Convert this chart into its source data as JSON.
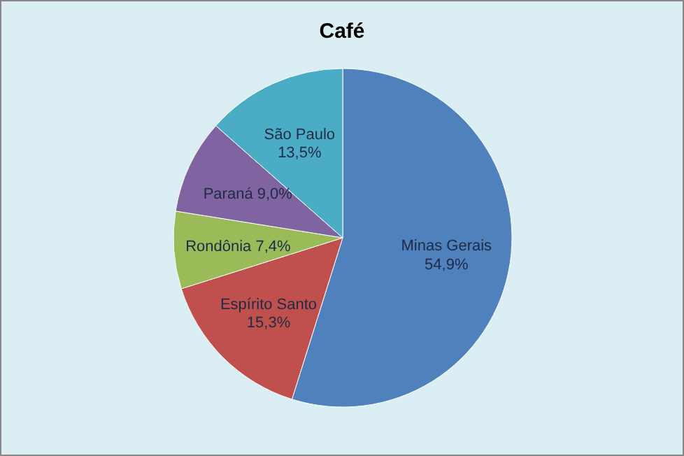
{
  "chart_data": {
    "type": "pie",
    "title": "Café",
    "categories": [
      "Minas Gerais",
      "Espírito Santo",
      "Rondônia",
      "Paraná",
      "São Paulo"
    ],
    "values": [
      54.9,
      15.3,
      7.4,
      9.0,
      13.5
    ],
    "value_labels": [
      "54,9%",
      "15,3%",
      "7,4%",
      "9,0%",
      "13,5%"
    ],
    "colors": [
      "#4f81bd",
      "#c0504d",
      "#9bbb59",
      "#8064a2",
      "#4bacc6"
    ],
    "legend": false
  }
}
